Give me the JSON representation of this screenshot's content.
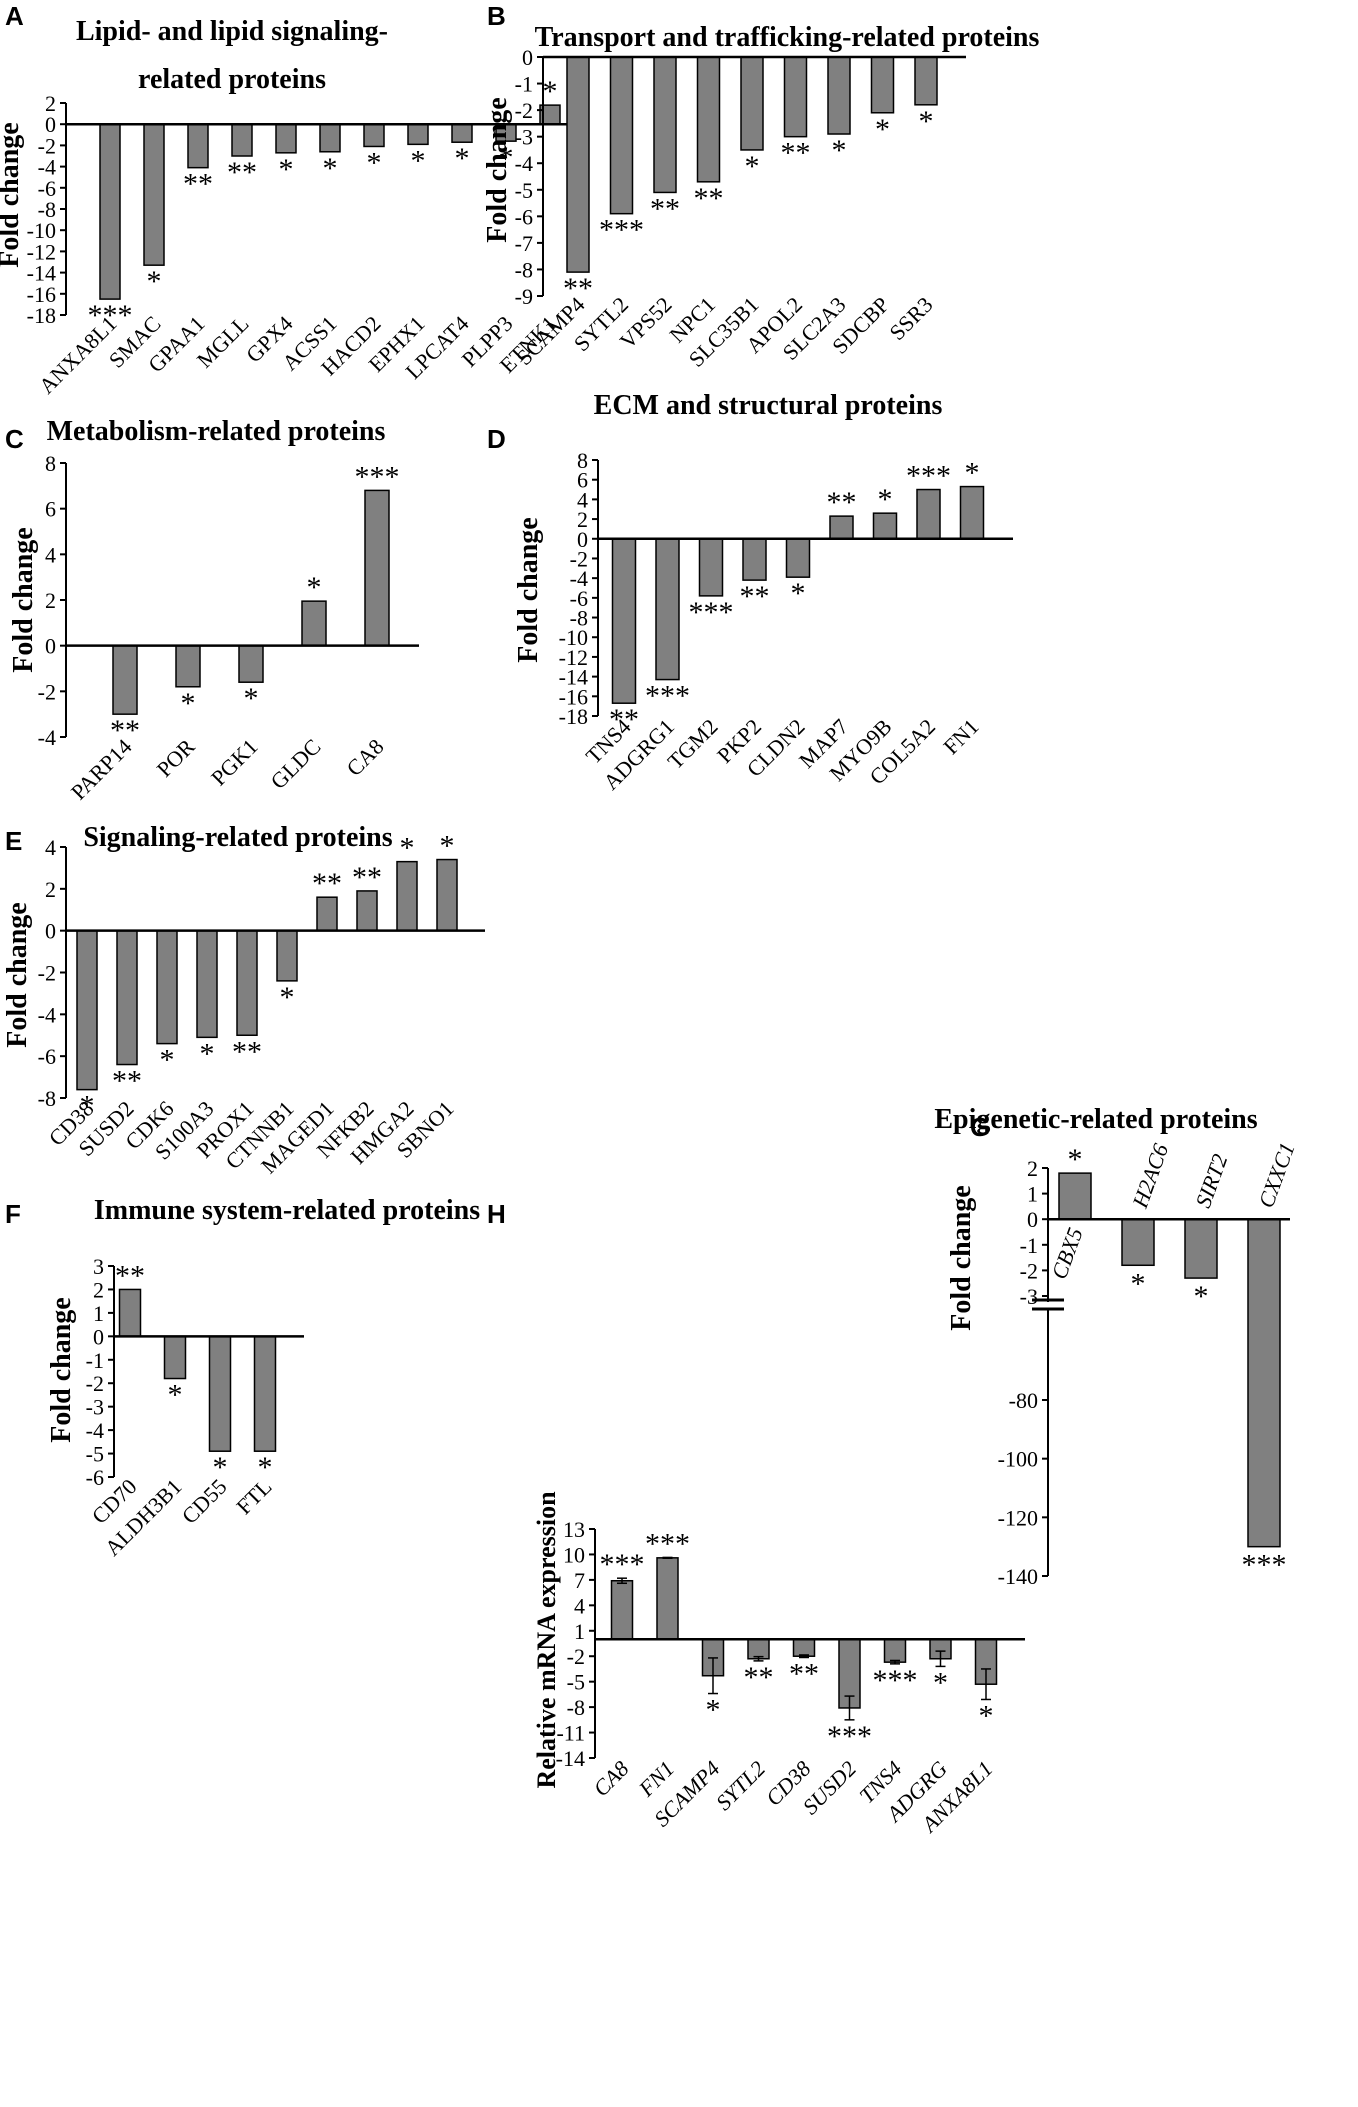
{
  "figure": {
    "background": "#ffffff",
    "bar_color": "#808080",
    "edge_color": "#000000"
  },
  "chart_data": [
    {
      "id": "A",
      "label": "A",
      "type": "bar",
      "title": [
        "Lipid- and lipid signaling-",
        "related proteins"
      ],
      "ylabel": "Fold change",
      "ylim": [
        -18,
        2
      ],
      "yticks": [
        "2",
        "0",
        "-2",
        "-4",
        "-6",
        "-8",
        "-10",
        "-12",
        "-14",
        "-16",
        "-18"
      ],
      "categories": [
        "ANXA8L1",
        "SMAC",
        "GPAA1",
        "MGLL",
        "GPX4",
        "ACSS1",
        "HACD2",
        "EPHX1",
        "LPCAT4",
        "PLPP3",
        "ETNK1"
      ],
      "values": [
        -16.5,
        -13.3,
        -4.1,
        -3.0,
        -2.7,
        -2.6,
        -2.1,
        -1.9,
        -1.7,
        -1.6,
        1.8
      ],
      "significance": [
        "***",
        "*",
        "**",
        "**",
        "*",
        "*",
        "*",
        "*",
        "*",
        "*",
        "*"
      ],
      "italic_labels": false
    },
    {
      "id": "B",
      "label": "B",
      "type": "bar",
      "title": [
        "Transport and trafficking-related proteins"
      ],
      "ylabel": "Fold change",
      "ylim": [
        -9,
        0
      ],
      "yticks": [
        "0",
        "-1",
        "-2",
        "-3",
        "-4",
        "-5",
        "-6",
        "-7",
        "-8",
        "-9"
      ],
      "categories": [
        "SCAMP4",
        "SYTL2",
        "VPS52",
        "NPC1",
        "SLC35B1",
        "APOL2",
        "SLC2A3",
        "SDCBP",
        "SSR3"
      ],
      "values": [
        -8.1,
        -5.9,
        -5.1,
        -4.7,
        -3.5,
        -3.0,
        -2.9,
        -2.1,
        -1.8
      ],
      "significance": [
        "**",
        "***",
        "**",
        "**",
        "*",
        "**",
        "*",
        "*",
        "*"
      ],
      "italic_labels": false
    },
    {
      "id": "C",
      "label": "C",
      "type": "bar",
      "title": [
        "Metabolism-related proteins"
      ],
      "ylabel": "Fold change",
      "ylim": [
        -4,
        8
      ],
      "yticks": [
        "8",
        "6",
        "4",
        "2",
        "0",
        "-2",
        "-4"
      ],
      "categories": [
        "PARP14",
        "POR",
        "PGK1",
        "GLDC",
        "CA8"
      ],
      "values": [
        -3.0,
        -1.8,
        -1.6,
        1.95,
        6.8
      ],
      "significance": [
        "**",
        "*",
        "*",
        "*",
        "***"
      ],
      "italic_labels": false
    },
    {
      "id": "D",
      "label": "D",
      "type": "bar",
      "title": [
        "ECM and structural proteins"
      ],
      "ylabel": "Fold change",
      "ylim": [
        -18,
        8
      ],
      "yticks": [
        "8",
        "6",
        "4",
        "2",
        "0",
        "-2",
        "-4",
        "-6",
        "-8",
        "-10",
        "-12",
        "-14",
        "-16",
        "-18"
      ],
      "categories": [
        "TNS4",
        "ADGRG1",
        "TGM2",
        "PKP2",
        "CLDN2",
        "MAP7",
        "MYO9B",
        "COL5A2",
        "FN1"
      ],
      "values": [
        -16.7,
        -14.3,
        -5.8,
        -4.2,
        -3.9,
        2.3,
        2.6,
        5.0,
        5.3
      ],
      "significance": [
        "**",
        "***",
        "***",
        "**",
        "*",
        "**",
        "*",
        "***",
        "*"
      ],
      "italic_labels": false
    },
    {
      "id": "E",
      "label": "E",
      "type": "bar",
      "title": [
        "Signaling-related proteins"
      ],
      "ylabel": "Fold change",
      "ylim": [
        -8,
        4
      ],
      "yticks": [
        "4",
        "2",
        "0",
        "-2",
        "-4",
        "-6",
        "-8"
      ],
      "categories": [
        "CD38",
        "SUSD2",
        "CDK6",
        "S100A3",
        "PROX1",
        "CTNNB1",
        "MAGED1",
        "NFKB2",
        "HMGA2",
        "SBNO1"
      ],
      "values": [
        -7.6,
        -6.4,
        -5.4,
        -5.1,
        -5.0,
        -2.4,
        1.6,
        1.9,
        3.3,
        3.4
      ],
      "significance": [
        "*",
        "**",
        "*",
        "*",
        "**",
        "*",
        "**",
        "**",
        "*",
        "*"
      ],
      "italic_labels": false
    },
    {
      "id": "G",
      "label": "G",
      "type": "bar",
      "title": [
        "Epigenetic-related proteins"
      ],
      "ylabel": "Fold change",
      "axis_break": true,
      "yticks_upper": [
        "2",
        "1",
        "0",
        "-1",
        "-2",
        "-3"
      ],
      "yticks_lower": [
        "-80",
        "-100",
        "-120",
        "-140"
      ],
      "categories": [
        "CBX5",
        "H2AC6",
        "SIRT2",
        "CXXC1"
      ],
      "values": [
        1.8,
        -1.8,
        -2.3,
        -130
      ],
      "significance": [
        "*",
        "*",
        "*",
        "***"
      ],
      "italic_labels": true
    },
    {
      "id": "F",
      "label": "F",
      "type": "bar",
      "title": [
        "Immune system-related proteins"
      ],
      "ylabel": "Fold change",
      "ylim": [
        -6,
        3
      ],
      "yticks": [
        "3",
        "2",
        "1",
        "0",
        "-1",
        "-2",
        "-3",
        "-4",
        "-5",
        "-6"
      ],
      "categories": [
        "CD70",
        "ALDH3B1",
        "CD55",
        "FTL"
      ],
      "values": [
        2.0,
        -1.8,
        -4.9,
        -4.9
      ],
      "significance": [
        "**",
        "*",
        "*",
        "*"
      ],
      "italic_labels": false
    },
    {
      "id": "H",
      "label": "H",
      "type": "bar",
      "title": [],
      "ylabel": "Relative mRNA expression",
      "ylim": [
        -14,
        13
      ],
      "yticks": [
        "13",
        "10",
        "7",
        "4",
        "1",
        "-2",
        "-5",
        "-8",
        "-11",
        "-14"
      ],
      "categories": [
        "CA8",
        "FN1",
        "SCAMP4",
        "SYTL2",
        "CD38",
        "SUSD2",
        "TNS4",
        "ADGRG",
        "ANXA8L1"
      ],
      "values": [
        6.9,
        9.6,
        -4.3,
        -2.3,
        -2.0,
        -8.1,
        -2.7,
        -2.3,
        -5.3
      ],
      "errors": [
        0.3,
        0.05,
        2.1,
        0.25,
        0.15,
        1.4,
        0.2,
        0.9,
        1.8
      ],
      "significance": [
        "***",
        "***",
        "*",
        "**",
        "**",
        "***",
        "***",
        "*",
        "*"
      ],
      "italic_labels": true
    }
  ]
}
